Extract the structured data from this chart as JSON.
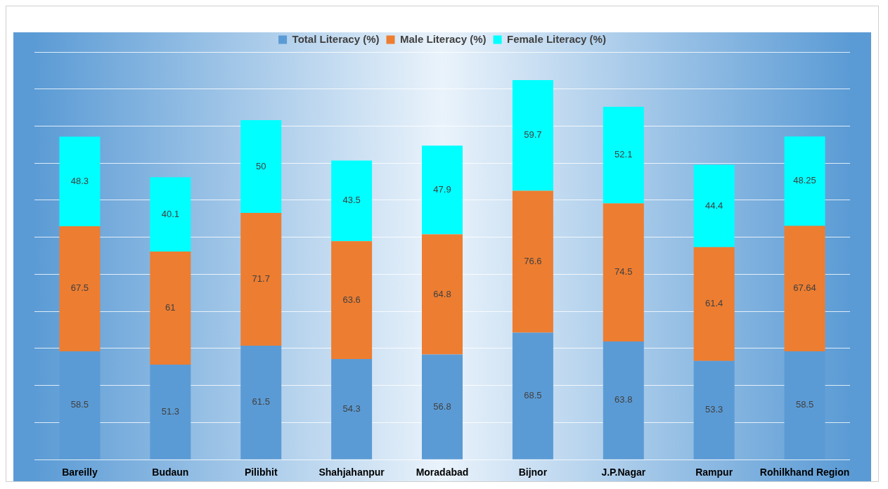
{
  "chart_data": {
    "type": "bar",
    "stacked": true,
    "categories": [
      "Bareilly",
      "Budaun",
      "Pilibhit",
      "Shahjahanpur",
      "Moradabad",
      "Bijnor",
      "J.P.Nagar",
      "Rampur",
      "Rohilkhand Region"
    ],
    "series": [
      {
        "name": "Total Literacy (%)",
        "color": "#5b9bd5",
        "values": [
          58.5,
          51.3,
          61.5,
          54.3,
          56.8,
          68.5,
          63.8,
          53.3,
          58.5
        ]
      },
      {
        "name": "Male Literacy (%)",
        "color": "#ed7d31",
        "values": [
          67.5,
          61,
          71.7,
          63.6,
          64.8,
          76.6,
          74.5,
          61.4,
          67.64
        ]
      },
      {
        "name": "Female Literacy (%)",
        "color": "#00ffff",
        "values": [
          48.3,
          40.1,
          50,
          43.5,
          47.9,
          59.7,
          52.1,
          44.4,
          48.25
        ]
      }
    ],
    "ylim": [
      0,
      220
    ],
    "yticks": [
      {
        "value": 0,
        "label": null
      },
      {
        "value": 20,
        "label": null
      },
      {
        "value": 40,
        "label": null
      },
      {
        "value": 60,
        "label": null
      },
      {
        "value": 80,
        "label": null
      },
      {
        "value": 100,
        "label": null
      },
      {
        "value": 120,
        "label": null
      },
      {
        "value": 140,
        "label": null
      },
      {
        "value": 160,
        "label": null
      },
      {
        "value": 180,
        "label": null
      },
      {
        "value": 200,
        "label": null
      },
      {
        "value": 220,
        "label": null
      }
    ],
    "tick_labels": "x",
    "grid": "y",
    "legend": "top",
    "data_labels": true
  }
}
